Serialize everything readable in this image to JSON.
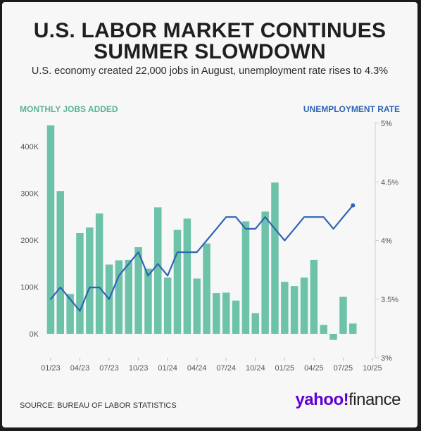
{
  "header": {
    "title_line1": "U.S. LABOR MARKET CONTINUES",
    "title_line2": "SUMMER SLOWDOWN",
    "subtitle": "U.S. economy created 22,000 jobs in August, unemployment rate rises to 4.3%"
  },
  "axis_titles": {
    "left": "MONTHLY JOBS ADDED",
    "right": "UNEMPLOYMENT RATE"
  },
  "footer": {
    "source": "SOURCE: BUREAU OF LABOR STATISTICS",
    "logo_part1": "yahoo!",
    "logo_part2": "finance"
  },
  "colors": {
    "bars": "#6dc3a9",
    "line": "#2f64b4",
    "left_label": "#5bb39a",
    "right_label": "#2f64b4",
    "logo": "#6001d2"
  },
  "chart_data": {
    "type": "bar",
    "x": [
      "01/23",
      "02/23",
      "03/23",
      "04/23",
      "05/23",
      "06/23",
      "07/23",
      "08/23",
      "09/23",
      "10/23",
      "11/23",
      "12/23",
      "01/24",
      "02/24",
      "03/24",
      "04/24",
      "05/24",
      "06/24",
      "07/24",
      "08/24",
      "09/24",
      "10/24",
      "11/24",
      "12/24",
      "01/25",
      "02/25",
      "03/25",
      "04/25",
      "05/25",
      "06/25",
      "07/25",
      "08/25"
    ],
    "x_tick_labels": [
      "01/23",
      "04/23",
      "07/23",
      "10/23",
      "01/24",
      "04/24",
      "07/24",
      "10/24",
      "01/25",
      "04/25",
      "07/25",
      "10/25"
    ],
    "series": [
      {
        "name": "MONTHLY JOBS ADDED",
        "type": "bar",
        "axis": "left",
        "values": [
          445000,
          305000,
          85000,
          215000,
          227000,
          257000,
          148000,
          157000,
          158000,
          185000,
          139000,
          270000,
          120000,
          222000,
          246000,
          118000,
          193000,
          87000,
          88000,
          71000,
          240000,
          44000,
          261000,
          323000,
          111000,
          102000,
          120000,
          158000,
          19000,
          -13000,
          79000,
          22000
        ]
      },
      {
        "name": "UNEMPLOYMENT RATE",
        "type": "line",
        "axis": "right",
        "values": [
          3.5,
          3.6,
          3.5,
          3.4,
          3.6,
          3.6,
          3.5,
          3.7,
          3.8,
          3.9,
          3.7,
          3.8,
          3.7,
          3.9,
          3.9,
          3.9,
          4.0,
          4.1,
          4.2,
          4.2,
          4.1,
          4.1,
          4.2,
          4.1,
          4.0,
          4.1,
          4.2,
          4.2,
          4.2,
          4.1,
          4.2,
          4.3
        ]
      }
    ],
    "y_left": {
      "ticks": [
        "0K",
        "100K",
        "200K",
        "300K",
        "400K"
      ],
      "tick_values": [
        0,
        100000,
        200000,
        300000,
        400000
      ],
      "range": [
        -15000,
        450000
      ]
    },
    "y_right": {
      "ticks": [
        "3%",
        "3.5%",
        "4%",
        "4.5%",
        "5%"
      ],
      "tick_values": [
        3,
        3.5,
        4,
        4.5,
        5
      ],
      "range": [
        3,
        5
      ]
    }
  }
}
